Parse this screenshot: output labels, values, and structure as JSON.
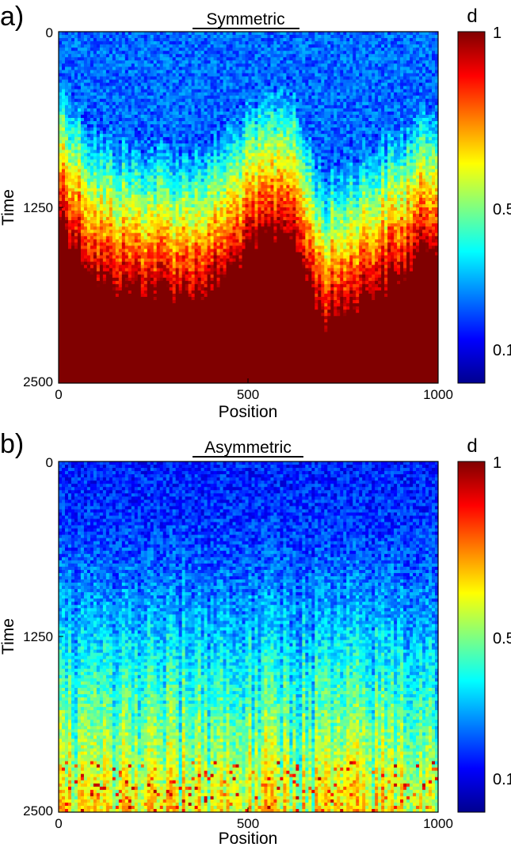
{
  "colors": {
    "colormap_jet": [
      "#00008f",
      "#0000ff",
      "#0080ff",
      "#00ffff",
      "#80ff80",
      "#ffff00",
      "#ff8000",
      "#ff0000",
      "#800000"
    ],
    "axis": "#000000",
    "background": "#ffffff"
  },
  "chart_data": [
    {
      "type": "heatmap",
      "panel_label": "a)",
      "title": "Symmetric",
      "xlabel": "Position",
      "ylabel": "Time",
      "xlim": [
        0,
        1000
      ],
      "ylim": [
        0,
        2500
      ],
      "y_axis_reversed": true,
      "xticks": [
        "0",
        "500",
        "1000"
      ],
      "yticks": [
        "0",
        "1250",
        "2500"
      ],
      "colorbar": {
        "label": "d",
        "scale": "log",
        "range": [
          0.06,
          1
        ],
        "ticks": [
          "0.1",
          "0.5",
          "1"
        ]
      },
      "description_values": {
        "x": [
          0,
          100,
          200,
          300,
          400,
          500,
          600,
          700,
          800,
          900,
          1000
        ],
        "front_time": [
          1310,
          1760,
          1830,
          1860,
          1830,
          1560,
          1370,
          2050,
          1880,
          1720,
          1460
        ],
        "d_early": 0.1,
        "d_saturated": 1
      }
    },
    {
      "type": "heatmap",
      "panel_label": "b)",
      "title": "Asymmetric",
      "xlabel": "Position",
      "ylabel": "Time",
      "xlim": [
        0,
        1000
      ],
      "ylim": [
        0,
        2500
      ],
      "y_axis_reversed": true,
      "xticks": [
        "0",
        "500",
        "1000"
      ],
      "yticks": [
        "0",
        "1250",
        "2500"
      ],
      "colorbar": {
        "label": "d",
        "scale": "log",
        "range": [
          0.06,
          1
        ],
        "ticks": [
          "0.1",
          "0.5",
          "1"
        ]
      },
      "description_values": {
        "d_early": 0.1,
        "d_late_max": 0.7
      }
    }
  ]
}
